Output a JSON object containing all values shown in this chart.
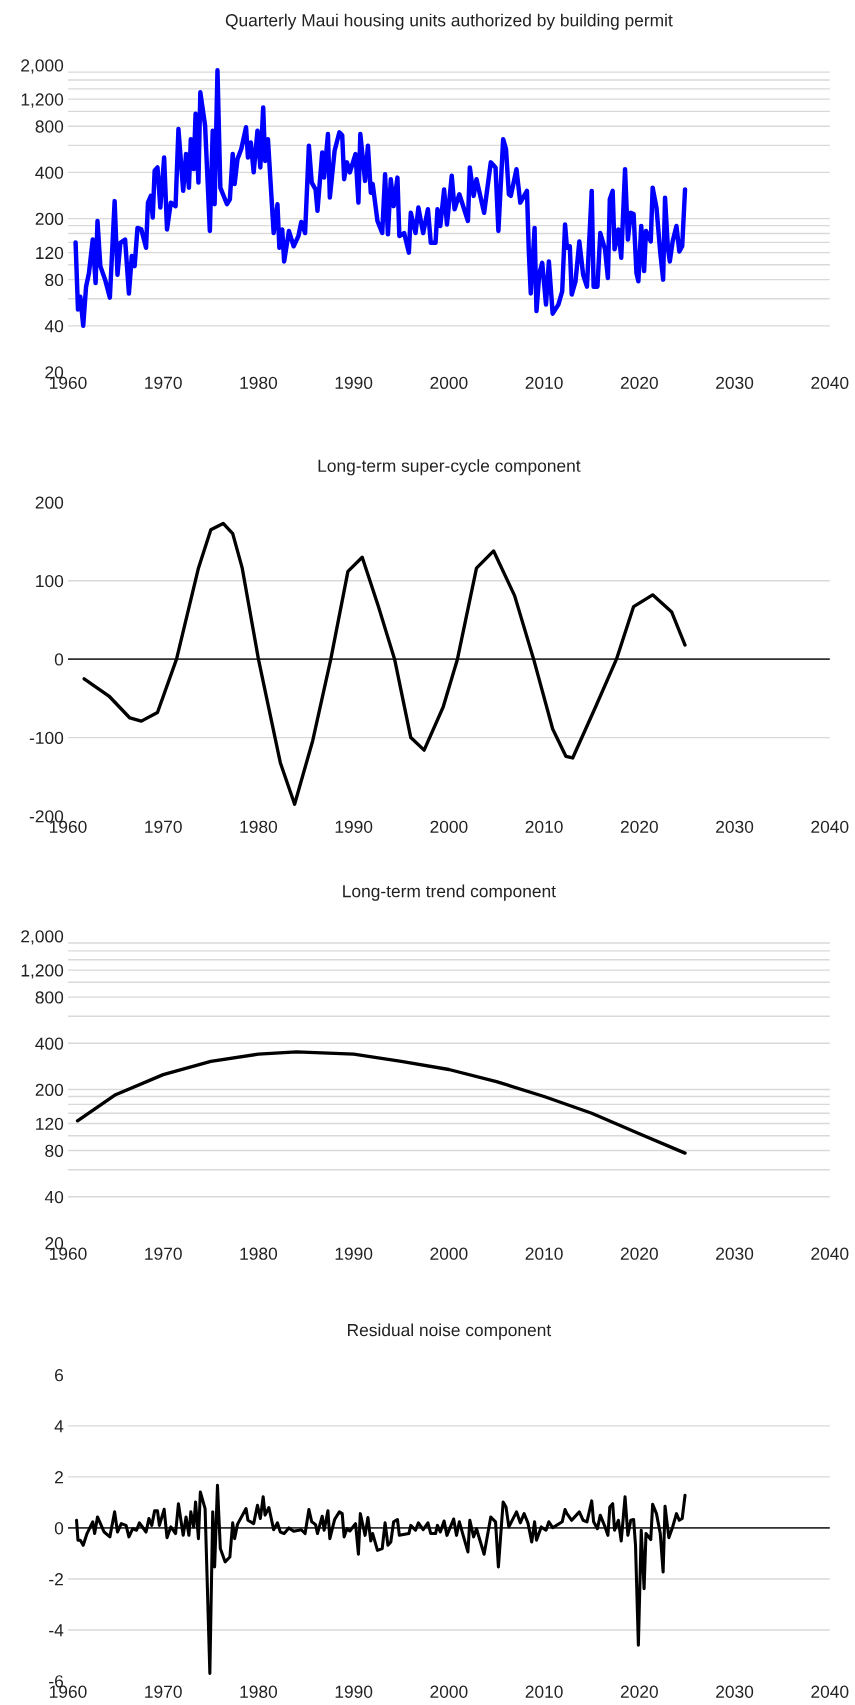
{
  "chart_data": [
    {
      "type": "line",
      "title": "Quarterly Maui housing units authorized by building permit",
      "log": "y",
      "grid": "y",
      "xlim": [
        1960,
        2040
      ],
      "xticks": [
        1960,
        1970,
        1980,
        1990,
        2000,
        2010,
        2020,
        2030,
        2040
      ],
      "ylim": [
        20,
        2000
      ],
      "yticks": [
        20,
        40,
        {
          "value": 60,
          "label": null
        },
        80,
        {
          "value": 100,
          "label": null
        },
        120,
        {
          "value": 140,
          "label": null
        },
        {
          "value": 160,
          "label": null
        },
        {
          "value": 180,
          "label": null
        },
        200,
        400,
        {
          "value": 600,
          "label": null
        },
        800,
        {
          "value": 1000,
          "label": null
        },
        {
          "value": 1200,
          "label": "1,200"
        },
        {
          "value": 1400,
          "label": null
        },
        {
          "value": 1600,
          "label": null
        },
        {
          "value": 1800,
          "label": null
        },
        {
          "value": 2000,
          "label": "2,000"
        }
      ],
      "series": [
        {
          "color": "#0000ff",
          "x": [
            1960.8,
            1961.05,
            1961.3,
            1961.6,
            1961.9,
            1962.2,
            1962.6,
            1962.9,
            1963.1,
            1963.4,
            1963.9,
            1964.4,
            1964.9,
            1965.2,
            1965.5,
            1966.0,
            1966.4,
            1966.7,
            1967.0,
            1967.3,
            1967.7,
            1968.2,
            1968.4,
            1968.7,
            1968.9,
            1969.1,
            1969.4,
            1969.7,
            1970.1,
            1970.4,
            1970.8,
            1971.3,
            1971.6,
            1972.1,
            1972.4,
            1972.7,
            1972.9,
            1973.2,
            1973.4,
            1973.7,
            1973.9,
            1974.4,
            1974.9,
            1975.2,
            1975.4,
            1975.7,
            1976.0,
            1976.7,
            1977.0,
            1977.3,
            1977.5,
            1977.8,
            1978.2,
            1978.7,
            1978.9,
            1979.2,
            1979.5,
            1979.9,
            1980.2,
            1980.5,
            1980.7,
            1981.0,
            1981.6,
            1982.0,
            1982.2,
            1982.5,
            1982.7,
            1983.2,
            1983.7,
            1984.2,
            1984.5,
            1984.9,
            1985.3,
            1985.6,
            1986.0,
            1986.2,
            1986.7,
            1986.9,
            1987.3,
            1987.5,
            1988.0,
            1988.5,
            1988.8,
            1989.0,
            1989.3,
            1989.6,
            1990.2,
            1990.5,
            1990.7,
            1991.2,
            1991.5,
            1991.8,
            1992.0,
            1992.5,
            1993.0,
            1993.3,
            1993.6,
            1993.9,
            1994.2,
            1994.6,
            1994.8,
            1995.3,
            1995.8,
            1996.0,
            1996.5,
            1996.8,
            1997.3,
            1997.8,
            1998.1,
            1998.6,
            1998.8,
            1999.1,
            1999.5,
            1999.8,
            2000.3,
            2000.6,
            2001.1,
            2002.0,
            2002.2,
            2002.6,
            2002.9,
            2003.7,
            2004.4,
            2004.9,
            2005.2,
            2005.7,
            2006.0,
            2006.3,
            2006.5,
            2007.1,
            2007.5,
            2007.8,
            2008.2,
            2008.4,
            2008.6,
            2009.0,
            2009.2,
            2009.5,
            2009.8,
            2010.2,
            2010.5,
            2010.9,
            2011.5,
            2011.9,
            2012.2,
            2012.4,
            2012.7,
            2012.9,
            2013.3,
            2013.7,
            2014.1,
            2014.5,
            2015.0,
            2015.2,
            2015.6,
            2015.9,
            2016.4,
            2016.7,
            2016.9,
            2017.2,
            2017.4,
            2017.8,
            2018.1,
            2018.5,
            2018.8,
            2019.1,
            2019.4,
            2019.7,
            2019.9,
            2020.2,
            2020.5,
            2020.7,
            2021.2,
            2021.4,
            2021.8,
            2022.2,
            2022.5,
            2022.7,
            2023.0,
            2023.2,
            2023.5,
            2023.9,
            2024.2,
            2024.5,
            2024.8
          ],
          "values": [
            140,
            51,
            62,
            40,
            72,
            88,
            146,
            76,
            193,
            98,
            80,
            61,
            260,
            86,
            139,
            146,
            65,
            114,
            98,
            174,
            170,
            129,
            254,
            281,
            203,
            410,
            431,
            236,
            500,
            170,
            254,
            241,
            767,
            303,
            527,
            318,
            659,
            420,
            963,
            343,
            1330,
            807,
            166,
            747,
            248,
            1850,
            318,
            248,
            267,
            527,
            336,
            488,
            568,
            787,
            500,
            627,
            400,
            747,
            431,
            1060,
            475,
            659,
            161,
            248,
            129,
            170,
            105,
            166,
            132,
            154,
            190,
            161,
            597,
            343,
            310,
            225,
            540,
            370,
            711,
            274,
            553,
            730,
            698,
            361,
            465,
            400,
            527,
            254,
            711,
            352,
            597,
            295,
            336,
            193,
            161,
            389,
            158,
            361,
            241,
            370,
            154,
            161,
            120,
            218,
            161,
            236,
            161,
            230,
            139,
            139,
            230,
            179,
            310,
            183,
            380,
            230,
            288,
            193,
            431,
            281,
            361,
            218,
            465,
            431,
            166,
            659,
            568,
            288,
            281,
            420,
            254,
            274,
            303,
            120,
            65,
            174,
            50,
            88,
            103,
            55,
            105,
            48,
            55,
            67,
            183,
            129,
            132,
            64,
            78,
            142,
            86,
            72,
            303,
            72,
            72,
            161,
            126,
            82,
            267,
            303,
            126,
            170,
            111,
            420,
            146,
            218,
            214,
            88,
            78,
            179,
            91,
            166,
            142,
            318,
            236,
            120,
            80,
            274,
            129,
            105,
            142,
            179,
            122,
            132,
            310
          ]
        }
      ]
    },
    {
      "type": "line",
      "title": "Long-term super-cycle component",
      "grid": "y",
      "xlim": [
        1960,
        2040
      ],
      "xticks": [
        1960,
        1970,
        1980,
        1990,
        2000,
        2010,
        2020,
        2030,
        2040
      ],
      "ylim": [
        -200,
        200
      ],
      "yticks": [
        -200,
        -100,
        0,
        100,
        200
      ],
      "ref_lines": [
        {
          "axis": "y",
          "value": 0,
          "color": "#333333"
        }
      ],
      "series": [
        {
          "color": "#000000",
          "x": [
            1961.7,
            1964.3,
            1966.5,
            1967.7,
            1969.4,
            1971.4,
            1973.7,
            1975.0,
            1976.3,
            1977.3,
            1978.3,
            1980.0,
            1982.3,
            1983.8,
            1985.7,
            1987.6,
            1989.4,
            1990.9,
            1992.6,
            1994.3,
            1996.0,
            1997.4,
            1999.4,
            2000.9,
            2002.9,
            2004.7,
            2006.9,
            2008.9,
            2010.9,
            2012.3,
            2013.0,
            2015.4,
            2017.6,
            2019.4,
            2021.4,
            2023.4,
            2024.8
          ],
          "values": [
            -25,
            -47,
            -75,
            -79,
            -68,
            0,
            116,
            165,
            173,
            160,
            116,
            0,
            -132,
            -185,
            -104,
            0,
            112,
            130,
            67,
            0,
            -100,
            -116,
            -61,
            0,
            116,
            138,
            81,
            0,
            -89,
            -124,
            -126,
            -61,
            0,
            67,
            82,
            60,
            18
          ]
        }
      ]
    },
    {
      "type": "line",
      "title": "Long-term trend component",
      "log": "y",
      "grid": "y",
      "xlim": [
        1960,
        2040
      ],
      "xticks": [
        1960,
        1970,
        1980,
        1990,
        2000,
        2010,
        2020,
        2030,
        2040
      ],
      "ylim": [
        20,
        2000
      ],
      "yticks": [
        20,
        40,
        {
          "value": 60,
          "label": null
        },
        80,
        {
          "value": 100,
          "label": null
        },
        120,
        {
          "value": 140,
          "label": null
        },
        {
          "value": 160,
          "label": null
        },
        {
          "value": 180,
          "label": null
        },
        200,
        400,
        {
          "value": 600,
          "label": null
        },
        800,
        {
          "value": 1000,
          "label": null
        },
        {
          "value": 1200,
          "label": "1,200"
        },
        {
          "value": 1400,
          "label": null
        },
        {
          "value": 1600,
          "label": null
        },
        {
          "value": 1800,
          "label": null
        },
        {
          "value": 2000,
          "label": "2,000"
        }
      ],
      "series": [
        {
          "color": "#000000",
          "x": [
            1961,
            1965,
            1970,
            1975,
            1980,
            1984,
            1990,
            1995,
            2000,
            2005,
            2010,
            2015,
            2020,
            2024.8
          ],
          "values": [
            125,
            185,
            250,
            305,
            340,
            352,
            340,
            305,
            270,
            225,
            180,
            140,
            103,
            77
          ]
        }
      ]
    },
    {
      "type": "line",
      "title": "Residual noise component",
      "grid": "y",
      "xlim": [
        1960,
        2040
      ],
      "xticks": [
        1960,
        1970,
        1980,
        1990,
        2000,
        2010,
        2020,
        2030,
        2040
      ],
      "ylim": [
        -6,
        6
      ],
      "yticks": [
        -6,
        -4,
        -2,
        0,
        2,
        4,
        6
      ],
      "ref_lines": [
        {
          "axis": "y",
          "value": 0,
          "color": "#333333"
        }
      ],
      "series": [
        {
          "color": "#000000",
          "x": [
            1960.9,
            1961.05,
            1961.3,
            1961.6,
            1962.0,
            1962.6,
            1962.8,
            1963.1,
            1963.8,
            1964.4,
            1964.9,
            1965.2,
            1965.6,
            1966.1,
            1966.4,
            1966.8,
            1967.2,
            1967.5,
            1968.2,
            1968.5,
            1968.8,
            1969.1,
            1969.4,
            1969.6,
            1970.1,
            1970.4,
            1970.8,
            1971.3,
            1971.6,
            1972.1,
            1972.4,
            1972.7,
            1972.9,
            1973.2,
            1973.4,
            1973.7,
            1973.9,
            1974.4,
            1974.9,
            1975.2,
            1975.4,
            1975.7,
            1976.0,
            1976.5,
            1977.0,
            1977.3,
            1977.5,
            1977.8,
            1978.7,
            1978.9,
            1979.5,
            1979.9,
            1980.2,
            1980.5,
            1980.7,
            1981.1,
            1981.6,
            1982.0,
            1982.3,
            1982.7,
            1983.2,
            1983.7,
            1984.5,
            1984.9,
            1985.3,
            1985.6,
            1986.0,
            1986.2,
            1986.7,
            1986.9,
            1987.3,
            1987.5,
            1988.0,
            1988.5,
            1988.8,
            1989.0,
            1989.3,
            1989.6,
            1990.2,
            1990.5,
            1990.7,
            1991.2,
            1991.5,
            1991.8,
            1992.0,
            1992.5,
            1993.0,
            1993.3,
            1993.6,
            1993.9,
            1994.2,
            1994.6,
            1994.8,
            1995.8,
            1996.0,
            1996.5,
            1996.8,
            1997.3,
            1997.8,
            1998.1,
            1998.6,
            1998.8,
            1999.1,
            1999.5,
            1999.8,
            2000.5,
            2000.8,
            2001.1,
            2001.5,
            2002.0,
            2002.2,
            2002.6,
            2002.9,
            2003.7,
            2004.4,
            2004.9,
            2005.2,
            2005.7,
            2006.0,
            2006.3,
            2007.1,
            2007.5,
            2007.9,
            2008.3,
            2008.7,
            2009.0,
            2009.2,
            2009.7,
            2010.2,
            2010.5,
            2010.9,
            2011.9,
            2012.2,
            2012.4,
            2012.9,
            2013.7,
            2014.1,
            2014.5,
            2015.0,
            2015.2,
            2015.6,
            2015.9,
            2016.4,
            2016.7,
            2016.9,
            2017.2,
            2017.4,
            2017.8,
            2018.1,
            2018.5,
            2018.8,
            2019.1,
            2019.4,
            2019.6,
            2019.9,
            2020.2,
            2020.5,
            2020.7,
            2021.2,
            2021.4,
            2021.8,
            2022.2,
            2022.5,
            2022.7,
            2023.1,
            2023.5,
            2023.9,
            2024.2,
            2024.5,
            2024.8
          ],
          "values": [
            0.3,
            -0.48,
            -0.48,
            -0.68,
            -0.22,
            0.24,
            -0.22,
            0.43,
            -0.16,
            -0.35,
            0.63,
            -0.16,
            0.17,
            0.1,
            -0.35,
            -0.03,
            -0.09,
            0.2,
            -0.16,
            0.37,
            0.1,
            0.67,
            0.67,
            0.1,
            0.73,
            -0.38,
            0.04,
            -0.22,
            0.95,
            -0.29,
            0.43,
            -0.29,
            0.63,
            0.04,
            1.02,
            -0.42,
            1.41,
            0.76,
            -5.71,
            0.63,
            -1.53,
            1.67,
            -0.81,
            -1.33,
            -1.14,
            0.2,
            -0.42,
            0.14,
            0.76,
            0.3,
            0.17,
            0.89,
            0.37,
            1.22,
            0.5,
            0.8,
            -0.07,
            0.2,
            -0.16,
            -0.22,
            0,
            -0.13,
            -0.07,
            -0.22,
            0.72,
            0.24,
            0.13,
            -0.22,
            0.46,
            -0.09,
            0.67,
            -0.42,
            0.33,
            0.63,
            0.56,
            -0.35,
            -0.03,
            -0.12,
            0.17,
            -1.03,
            0.56,
            -0.29,
            0.41,
            -0.51,
            -0.22,
            -0.88,
            -0.81,
            0.2,
            -0.68,
            -0.55,
            0.24,
            0.33,
            -0.29,
            -0.22,
            0.1,
            -0.09,
            0.2,
            -0.07,
            0.2,
            -0.22,
            -0.22,
            0.1,
            -0.16,
            0.27,
            -0.29,
            0.35,
            -0.29,
            0.24,
            -0.29,
            -0.94,
            0.3,
            -0.35,
            -0.03,
            -1.03,
            0.43,
            0.24,
            -1.53,
            1.02,
            0.82,
            0.04,
            0.63,
            0.2,
            0.56,
            0.2,
            -0.55,
            0.24,
            -0.48,
            0.04,
            -0.09,
            0.24,
            0.01,
            0.24,
            0.72,
            0.56,
            0.3,
            0.63,
            0.3,
            0.24,
            1.06,
            0.24,
            -0.03,
            0.5,
            0.04,
            -0.29,
            0.82,
            0.95,
            -0.09,
            0.3,
            -0.51,
            1.22,
            -0.29,
            0.3,
            0.33,
            -0.68,
            -4.6,
            -0.09,
            -2.38,
            -0.22,
            -0.46,
            0.93,
            0.56,
            -0.22,
            -1.73,
            0.85,
            -0.38,
            0.04,
            0.56,
            0.3,
            0.37,
            1.28
          ]
        }
      ]
    }
  ]
}
